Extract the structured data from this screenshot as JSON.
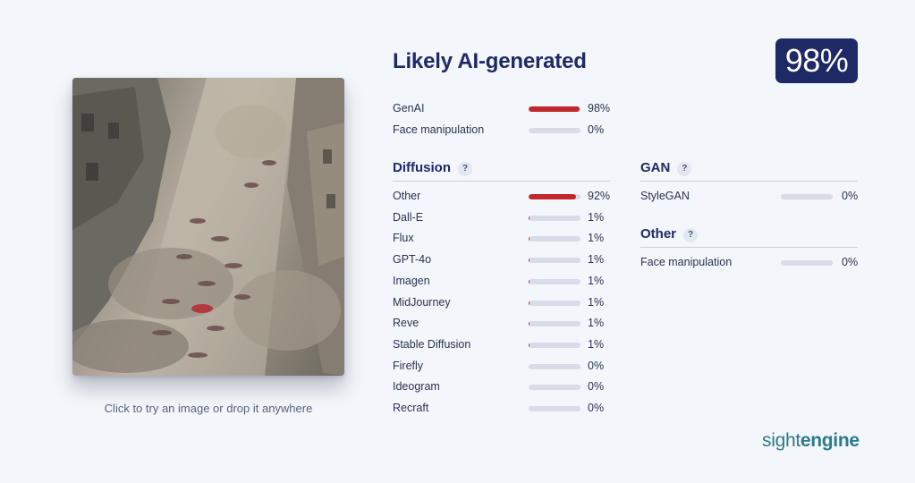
{
  "upload": {
    "caption": "Click to try an image or drop it anywhere"
  },
  "result": {
    "title": "Likely AI-generated",
    "score": "98%"
  },
  "summary": [
    {
      "label": "GenAI",
      "percent": "98%",
      "value": 0.98
    },
    {
      "label": "Face manipulation",
      "percent": "0%",
      "value": 0.0
    }
  ],
  "diffusion": {
    "title": "Diffusion",
    "help": "?",
    "items": [
      {
        "label": "Other",
        "percent": "92%",
        "value": 0.92
      },
      {
        "label": "Dall-E",
        "percent": "1%",
        "value": 0.01
      },
      {
        "label": "Flux",
        "percent": "1%",
        "value": 0.01
      },
      {
        "label": "GPT-4o",
        "percent": "1%",
        "value": 0.01
      },
      {
        "label": "Imagen",
        "percent": "1%",
        "value": 0.01
      },
      {
        "label": "MidJourney",
        "percent": "1%",
        "value": 0.01
      },
      {
        "label": "Reve",
        "percent": "1%",
        "value": 0.01
      },
      {
        "label": "Stable Diffusion",
        "percent": "1%",
        "value": 0.01
      },
      {
        "label": "Firefly",
        "percent": "0%",
        "value": 0.0
      },
      {
        "label": "Ideogram",
        "percent": "0%",
        "value": 0.0
      },
      {
        "label": "Recraft",
        "percent": "0%",
        "value": 0.0
      }
    ]
  },
  "gan": {
    "title": "GAN",
    "help": "?",
    "items": [
      {
        "label": "StyleGAN",
        "percent": "0%",
        "value": 0.0
      }
    ]
  },
  "other": {
    "title": "Other",
    "help": "?",
    "items": [
      {
        "label": "Face manipulation",
        "percent": "0%",
        "value": 0.0
      }
    ]
  },
  "brand": {
    "part1": "sight",
    "part2": "engine"
  },
  "colors": {
    "accent": "#1e2a66",
    "bar_fill": "#c1272d",
    "bar_track": "#d7dce8",
    "brand": "#2b7a8c"
  }
}
